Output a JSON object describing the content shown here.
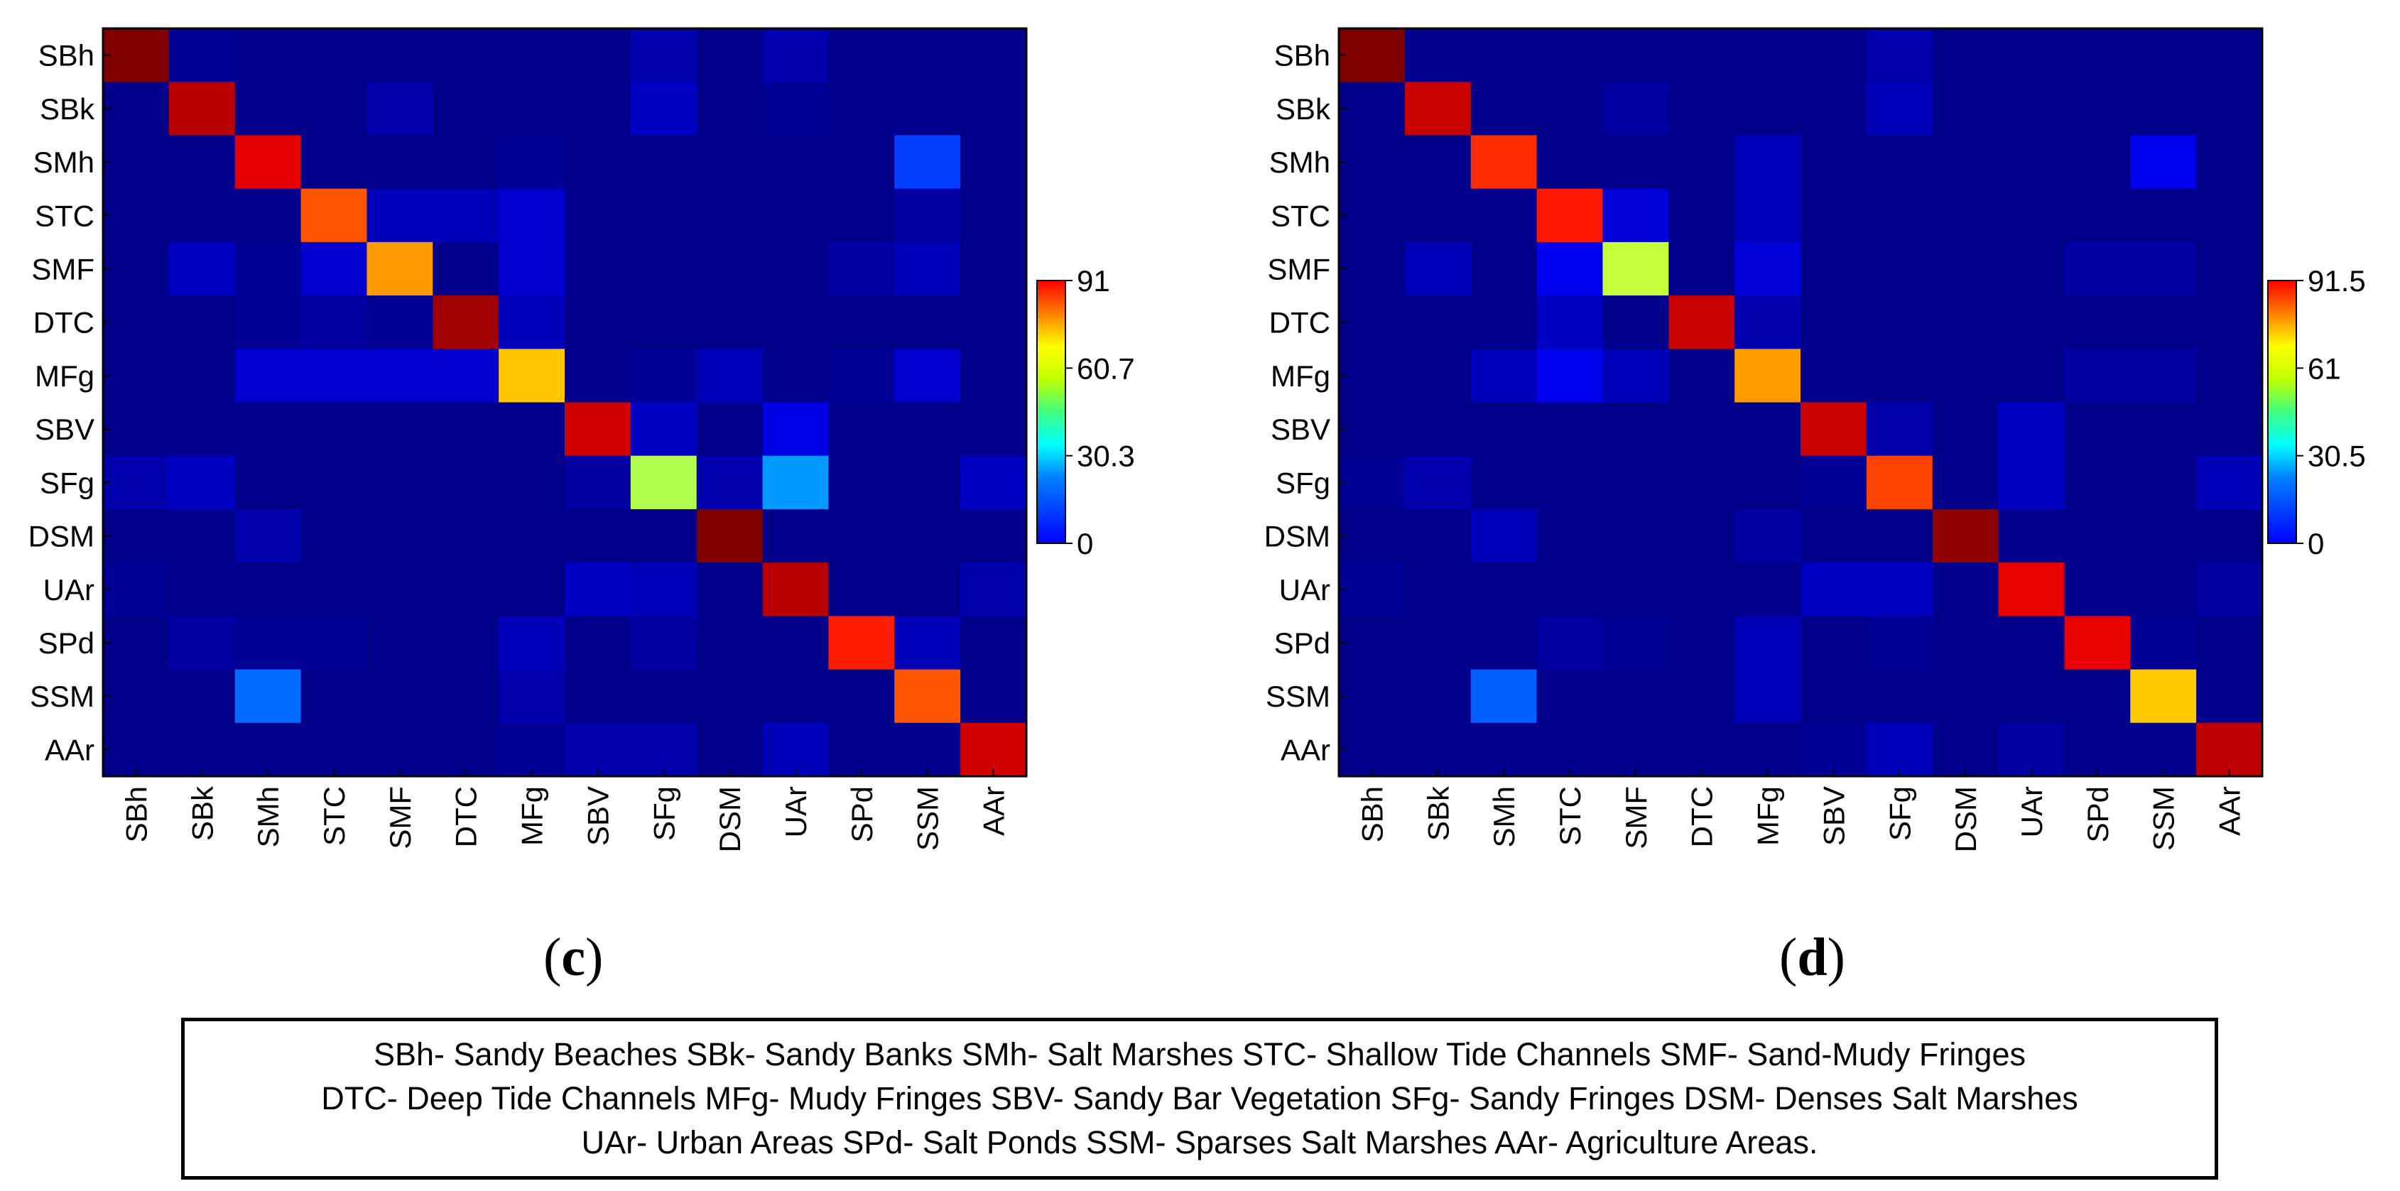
{
  "chart_data": [
    {
      "type": "heatmap",
      "panel": "c",
      "categories": [
        "SBh",
        "SBk",
        "SMh",
        "STC",
        "SMF",
        "DTC",
        "MFg",
        "SBV",
        "SFg",
        "DSM",
        "UAr",
        "SPd",
        "SSM",
        "AAr"
      ],
      "xlabel": "",
      "ylabel": "",
      "colorbar": {
        "min": 0,
        "max": 91,
        "ticks": [
          "91",
          "60.7",
          "30.3",
          "0"
        ]
      },
      "values": [
        [
          91,
          2,
          1,
          1,
          1,
          1,
          1,
          1,
          4,
          1,
          4,
          1,
          1,
          1
        ],
        [
          1,
          86,
          1,
          1,
          4,
          1,
          1,
          1,
          6,
          1,
          2,
          1,
          1,
          1
        ],
        [
          1,
          1,
          82,
          1,
          1,
          1,
          2,
          1,
          1,
          1,
          1,
          1,
          17,
          1
        ],
        [
          1,
          1,
          1,
          72,
          5,
          5,
          7,
          1,
          1,
          1,
          1,
          1,
          3,
          1
        ],
        [
          1,
          6,
          2,
          7,
          66,
          1,
          7,
          1,
          1,
          1,
          1,
          3,
          5,
          1
        ],
        [
          1,
          1,
          2,
          3,
          2,
          88,
          5,
          1,
          1,
          1,
          1,
          1,
          1,
          1
        ],
        [
          1,
          1,
          7,
          7,
          7,
          7,
          62,
          1,
          2,
          5,
          1,
          2,
          7,
          1
        ],
        [
          1,
          1,
          1,
          1,
          1,
          1,
          1,
          84,
          6,
          1,
          9,
          1,
          1,
          1
        ],
        [
          4,
          6,
          1,
          1,
          1,
          1,
          1,
          3,
          50,
          4,
          25,
          1,
          1,
          6
        ],
        [
          1,
          1,
          4,
          1,
          1,
          1,
          1,
          1,
          1,
          91,
          1,
          1,
          1,
          1
        ],
        [
          2,
          1,
          1,
          1,
          1,
          1,
          1,
          6,
          5,
          1,
          86,
          1,
          1,
          4
        ],
        [
          1,
          3,
          2,
          2,
          1,
          1,
          5,
          1,
          3,
          1,
          1,
          77,
          5,
          1
        ],
        [
          1,
          1,
          21,
          1,
          1,
          1,
          4,
          1,
          1,
          1,
          1,
          1,
          72,
          1
        ],
        [
          1,
          1,
          1,
          1,
          1,
          1,
          2,
          4,
          4,
          1,
          5,
          1,
          1,
          84
        ]
      ]
    },
    {
      "type": "heatmap",
      "panel": "d",
      "categories": [
        "SBh",
        "SBk",
        "SMh",
        "STC",
        "SMF",
        "DTC",
        "MFg",
        "SBV",
        "SFg",
        "DSM",
        "UAr",
        "SPd",
        "SSM",
        "AAr"
      ],
      "xlabel": "",
      "ylabel": "",
      "colorbar": {
        "min": 0,
        "max": 91.5,
        "ticks": [
          "91.5",
          "61",
          "30.5",
          "0"
        ]
      },
      "values": [
        [
          91.5,
          1,
          1,
          1,
          1,
          1,
          1,
          1,
          4,
          1,
          1,
          1,
          1,
          1
        ],
        [
          1,
          85,
          1,
          1,
          3,
          1,
          1,
          1,
          5,
          1,
          1,
          1,
          1,
          1
        ],
        [
          1,
          1,
          76,
          1,
          1,
          1,
          5,
          1,
          1,
          1,
          1,
          1,
          10,
          1
        ],
        [
          1,
          1,
          1,
          78,
          8,
          1,
          5,
          1,
          1,
          1,
          1,
          1,
          1,
          1
        ],
        [
          1,
          5,
          1,
          10,
          52,
          1,
          8,
          1,
          1,
          1,
          1,
          3,
          3,
          1
        ],
        [
          1,
          1,
          1,
          6,
          1,
          85,
          4,
          1,
          1,
          1,
          1,
          1,
          1,
          1
        ],
        [
          1,
          1,
          5,
          10,
          5,
          1,
          66,
          1,
          1,
          1,
          1,
          3,
          3,
          1
        ],
        [
          1,
          1,
          1,
          1,
          1,
          1,
          1,
          85,
          4,
          1,
          6,
          1,
          1,
          1
        ],
        [
          2,
          4,
          1,
          1,
          1,
          1,
          1,
          2,
          74,
          1,
          6,
          1,
          1,
          5
        ],
        [
          1,
          1,
          5,
          1,
          1,
          1,
          3,
          1,
          1,
          90,
          1,
          1,
          1,
          1
        ],
        [
          2,
          1,
          1,
          1,
          1,
          1,
          1,
          6,
          6,
          1,
          82,
          1,
          1,
          3
        ],
        [
          1,
          1,
          1,
          3,
          2,
          1,
          5,
          1,
          2,
          1,
          1,
          82,
          2,
          1
        ],
        [
          1,
          1,
          20,
          1,
          1,
          1,
          5,
          1,
          1,
          1,
          1,
          1,
          62,
          1
        ],
        [
          1,
          1,
          1,
          1,
          1,
          1,
          1,
          2,
          5,
          1,
          3,
          1,
          1,
          86
        ]
      ]
    }
  ],
  "panels": {
    "c_label": "c",
    "d_label": "d"
  },
  "caption": {
    "line1": "SBh- Sandy Beaches SBk- Sandy Banks SMh- Salt Marshes STC- Shallow Tide Channels SMF- Sand-Mudy Fringes",
    "line2": "DTC- Deep Tide Channels MFg- Mudy Fringes SBV- Sandy Bar Vegetation SFg- Sandy Fringes DSM- Denses Salt Marshes",
    "line3": "UAr- Urban Areas SPd- Salt Ponds SSM- Sparses Salt Marshes AAr- Agriculture Areas."
  }
}
